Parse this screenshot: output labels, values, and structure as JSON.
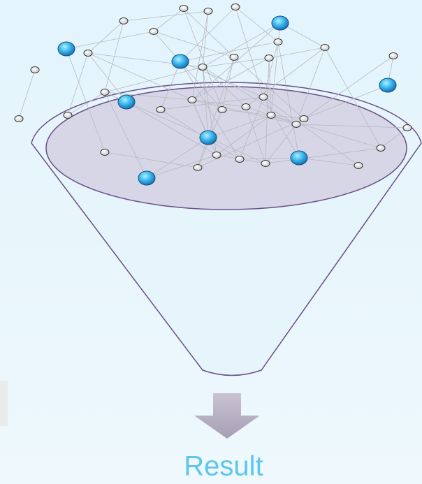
{
  "result": {
    "label": "Result"
  }
}
